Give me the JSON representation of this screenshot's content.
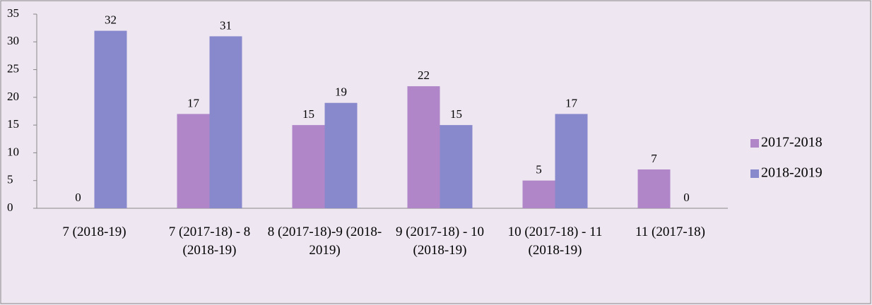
{
  "chart_data": {
    "type": "bar",
    "categories": [
      "7 (2018-19)",
      "7 (2017-18) - 8 (2018-19)",
      "8 (2017-18)-9 (2018-2019)",
      "9 (2017-18) - 10 (2018-19)",
      "10 (2017-18) - 11 (2018-19)",
      "11 (2017-18)"
    ],
    "series": [
      {
        "name": "2017-2018",
        "color": "#b086c8",
        "values": [
          0,
          17,
          15,
          22,
          5,
          7
        ]
      },
      {
        "name": "2018-2019",
        "color": "#8888cc",
        "values": [
          32,
          31,
          19,
          15,
          17,
          0
        ]
      }
    ],
    "ylim": [
      0,
      35
    ],
    "yticks": [
      0,
      5,
      10,
      15,
      20,
      25,
      30,
      35
    ],
    "grid": false,
    "legend": "right"
  }
}
